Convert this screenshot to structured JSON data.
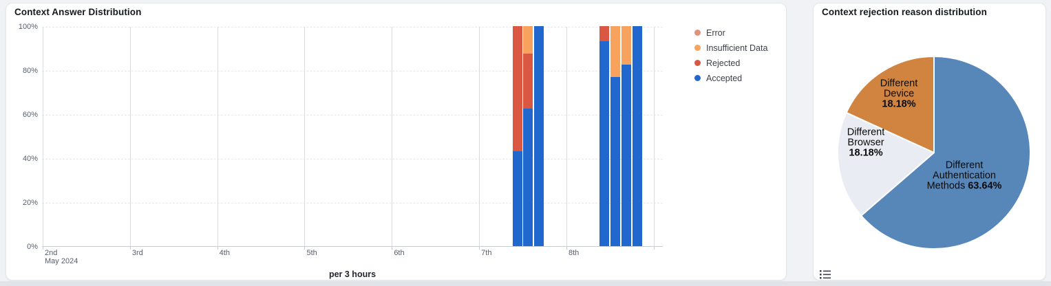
{
  "left_panel": {
    "title": "Context Answer Distribution",
    "xlabel": "per 3 hours"
  },
  "right_panel": {
    "title": "Context rejection reason distribution",
    "legend_toggle_icon": "list-icon"
  },
  "chart_data": [
    {
      "type": "bar",
      "stacked": true,
      "title": "Context Answer Distribution",
      "xlabel": "per 3 hours",
      "ylabel": "",
      "ylim": [
        0,
        100
      ],
      "yticks": [
        "0%",
        "20%",
        "40%",
        "60%",
        "80%",
        "100%"
      ],
      "grid": {
        "horizontal": "dashed",
        "vertical": "solid-per-day"
      },
      "x_axis": {
        "days": [
          "2nd",
          "3rd",
          "4th",
          "5th",
          "6th",
          "7th",
          "8th"
        ],
        "month_label": "May 2024",
        "bin": "per 3 hours"
      },
      "legend_position": "right",
      "legend": [
        {
          "key": "error",
          "label": "Error",
          "color": "#e2907e"
        },
        {
          "key": "insufficient_data",
          "label": "Insufficient Data",
          "color": "#f8a35d"
        },
        {
          "key": "rejected",
          "label": "Rejected",
          "color": "#da5742"
        },
        {
          "key": "accepted",
          "label": "Accepted",
          "color": "#2068ce"
        }
      ],
      "stack_order": [
        "accepted",
        "rejected",
        "insufficient_data",
        "error"
      ],
      "bars": [
        {
          "day": "7th",
          "hour": 9,
          "segments": {
            "accepted": 43,
            "rejected": 57
          }
        },
        {
          "day": "7th",
          "hour": 12,
          "segments": {
            "accepted": 62.5,
            "rejected": 25,
            "insufficient_data": 12.5
          }
        },
        {
          "day": "7th",
          "hour": 15,
          "segments": {
            "accepted": 100
          }
        },
        {
          "day": "8th",
          "hour": 9,
          "segments": {
            "accepted": 93,
            "rejected": 7
          }
        },
        {
          "day": "8th",
          "hour": 12,
          "segments": {
            "accepted": 77,
            "insufficient_data": 23
          }
        },
        {
          "day": "8th",
          "hour": 15,
          "segments": {
            "accepted": 82.5,
            "insufficient_data": 17.5
          }
        },
        {
          "day": "8th",
          "hour": 18,
          "segments": {
            "accepted": 100
          }
        }
      ]
    },
    {
      "type": "pie",
      "title": "Context rejection reason distribution",
      "start_angle_deg": 0,
      "direction": "clockwise",
      "slices": [
        {
          "label": "Different Authentication Methods",
          "pct_label": "63.64%",
          "value": 63.64,
          "color": "#5787b9"
        },
        {
          "label": "Different Browser",
          "pct_label": "18.18%",
          "value": 18.18,
          "color": "#e9ecf2"
        },
        {
          "label": "Different Device",
          "pct_label": "18.18%",
          "value": 18.18,
          "color": "#d0843f"
        }
      ]
    }
  ]
}
